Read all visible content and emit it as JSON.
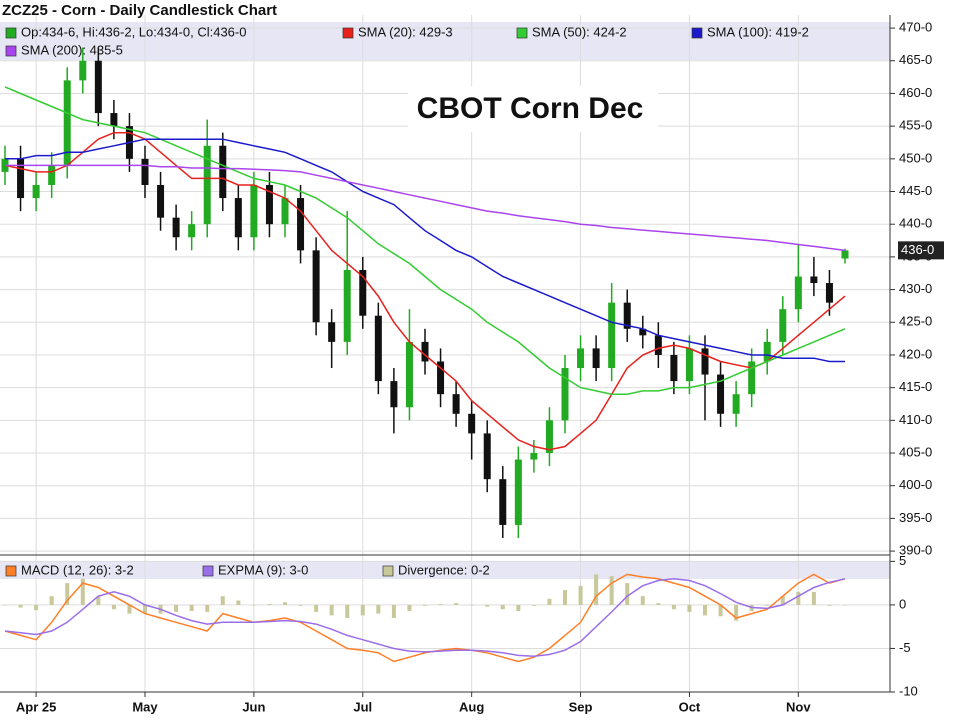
{
  "chart_data": [
    {
      "type": "candlestick",
      "title": "ZCZ25 - Corn - Daily Candlestick Chart",
      "annotation": "CBOT Corn Dec",
      "ohlc_legend": "Op:434-6, Hi:436-2, Lo:434-0, Cl:436-0",
      "up_color": "#22aa22",
      "down_color": "#111111",
      "categories": [
        null,
        null,
        "Apr 25",
        null,
        null,
        null,
        null,
        null,
        null,
        "May",
        null,
        null,
        null,
        null,
        null,
        null,
        "Jun",
        null,
        null,
        null,
        null,
        null,
        null,
        "Jul",
        null,
        null,
        null,
        null,
        null,
        null,
        "Aug",
        null,
        null,
        null,
        null,
        null,
        null,
        "Sep",
        null,
        null,
        null,
        null,
        null,
        null,
        "Oct",
        null,
        null,
        null,
        null,
        null,
        null,
        "Nov",
        null,
        null,
        null
      ],
      "open": [
        448,
        450,
        444,
        446,
        449,
        462,
        465,
        457,
        455,
        450,
        446,
        441,
        438,
        440,
        452,
        444,
        438,
        446,
        440,
        444,
        436,
        425,
        422,
        433,
        426,
        416,
        412,
        422,
        419,
        414,
        411,
        408,
        401,
        394,
        404,
        405,
        410,
        418,
        421,
        418,
        428,
        424,
        423,
        420,
        416,
        421,
        417,
        411,
        414,
        419,
        422,
        427,
        432,
        431,
        434.75
      ],
      "high": [
        452,
        452,
        448,
        451,
        464,
        467,
        467,
        459,
        457,
        452,
        448,
        443,
        442,
        456,
        454,
        446,
        448,
        448,
        446,
        446,
        438,
        427,
        442,
        435,
        428,
        418,
        427,
        424,
        421,
        416,
        413,
        410,
        403,
        406,
        407,
        412,
        420,
        423,
        423,
        431,
        430,
        426,
        425,
        422,
        423,
        423,
        419,
        416,
        421,
        424,
        429,
        437,
        435,
        433,
        436.25
      ],
      "low": [
        446,
        442,
        442,
        444,
        447,
        460,
        455,
        453,
        448,
        444,
        439,
        436,
        436,
        438,
        442,
        436,
        436,
        438,
        438,
        434,
        423,
        418,
        420,
        424,
        414,
        408,
        410,
        417,
        412,
        409,
        404,
        399,
        392,
        392,
        402,
        403,
        408,
        416,
        416,
        416,
        422,
        421,
        418,
        414,
        414,
        410,
        409,
        409,
        412,
        417,
        420,
        425,
        429,
        426,
        434
      ],
      "close": [
        450,
        444,
        446,
        449,
        462,
        465,
        457,
        455,
        450,
        446,
        441,
        438,
        440,
        452,
        444,
        438,
        446,
        440,
        444,
        436,
        425,
        422,
        433,
        426,
        416,
        412,
        422,
        419,
        414,
        411,
        408,
        401,
        394,
        404,
        405,
        410,
        418,
        421,
        418,
        428,
        424,
        423,
        420,
        416,
        421,
        417,
        411,
        414,
        419,
        422,
        427,
        432,
        431,
        428,
        436
      ],
      "series": [
        {
          "name": "SMA (20): 429-3",
          "color": "#e8201c",
          "values": [
            449,
            448.5,
            448,
            448,
            449,
            451,
            453,
            454,
            454,
            453,
            451,
            449,
            447,
            447,
            447,
            446,
            446,
            445,
            444,
            442,
            439,
            436,
            434,
            432,
            429,
            425,
            422,
            420,
            418,
            416,
            413,
            411,
            409,
            407,
            406,
            405.5,
            406,
            408,
            410,
            414,
            418,
            420,
            421,
            421.5,
            421,
            420,
            419,
            418.5,
            418,
            419,
            421,
            423,
            425,
            427,
            429
          ]
        },
        {
          "name": "SMA (50): 424-2",
          "color": "#33cc33",
          "values": [
            461,
            460,
            459,
            458,
            457,
            456,
            455.5,
            455,
            454.5,
            454,
            453,
            452,
            451,
            450,
            449,
            448,
            447,
            446.5,
            446,
            445,
            444,
            442.5,
            441,
            439,
            437,
            435.5,
            434,
            432,
            430,
            428.5,
            427,
            425,
            423.5,
            422,
            420,
            418,
            416.5,
            415,
            414.5,
            414,
            414,
            414.5,
            414.5,
            415,
            415,
            415.5,
            416,
            417,
            418,
            419,
            420,
            421,
            422,
            423,
            424
          ]
        },
        {
          "name": "SMA (100): 419-2",
          "color": "#1a1acc",
          "values": [
            450,
            450,
            450.5,
            450.5,
            451,
            451,
            451.5,
            452,
            452.5,
            453,
            453,
            453,
            453,
            453,
            453,
            452.5,
            452,
            451.5,
            451,
            450,
            449,
            448,
            446.5,
            445,
            444,
            443,
            441,
            439,
            437.5,
            436,
            435,
            433.5,
            432,
            431,
            430,
            429,
            428,
            427,
            426,
            425,
            424.5,
            424,
            423,
            422.5,
            422,
            421.5,
            421,
            420.5,
            420,
            420,
            419.5,
            419.5,
            419.5,
            419,
            419
          ]
        },
        {
          "name": "SMA (200): 435-5",
          "color": "#aa44ee",
          "values": [
            449,
            449,
            449,
            449,
            449,
            449,
            449,
            449,
            449,
            449,
            448.8,
            448.8,
            448.6,
            448.6,
            448.5,
            448.5,
            448.4,
            448.3,
            448.2,
            448,
            447.5,
            447,
            446.5,
            446,
            445.5,
            445,
            444.5,
            444,
            443.5,
            443,
            442.5,
            442,
            441.7,
            441.3,
            441,
            440.7,
            440.4,
            440,
            439.8,
            439.5,
            439.3,
            439.1,
            438.9,
            438.7,
            438.5,
            438.3,
            438.1,
            437.9,
            437.7,
            437.5,
            437.2,
            436.9,
            436.6,
            436.3,
            436
          ]
        }
      ],
      "last_price": {
        "value": 436,
        "label": "436-0"
      },
      "ylim": [
        389.4,
        472
      ],
      "yticks": [
        {
          "value": 390,
          "label": "390-0"
        },
        {
          "value": 395,
          "label": "395-0"
        },
        {
          "value": 400,
          "label": "400-0"
        },
        {
          "value": 405,
          "label": "405-0"
        },
        {
          "value": 410,
          "label": "410-0"
        },
        {
          "value": 415,
          "label": "415-0"
        },
        {
          "value": 420,
          "label": "420-0"
        },
        {
          "value": 425,
          "label": "425-0"
        },
        {
          "value": 430,
          "label": "430-0"
        },
        {
          "value": 435,
          "label": "435-0"
        },
        {
          "value": 440,
          "label": "440-0"
        },
        {
          "value": 445,
          "label": "445-0"
        },
        {
          "value": 450,
          "label": "450-0"
        },
        {
          "value": 455,
          "label": "455-0"
        },
        {
          "value": 460,
          "label": "460-0"
        },
        {
          "value": 465,
          "label": "465-0"
        },
        {
          "value": 470,
          "label": "470-0"
        }
      ],
      "grid": true
    },
    {
      "type": "line",
      "series": [
        {
          "name": "MACD (12, 26): 3-2",
          "color": "#ff7f27",
          "values": [
            -3,
            -3.5,
            -4,
            -2,
            0.5,
            2.5,
            2,
            1,
            0,
            -1,
            -1.5,
            -2,
            -2.5,
            -3,
            -1,
            -1.5,
            -2,
            -1.8,
            -1.5,
            -2,
            -3,
            -4,
            -5,
            -5.2,
            -5.5,
            -6.5,
            -6,
            -5.5,
            -5.2,
            -5,
            -5.2,
            -5.5,
            -6,
            -6.5,
            -6,
            -5,
            -3.5,
            -2,
            1,
            2.5,
            3.5,
            3.2,
            3,
            2.5,
            2,
            1,
            0,
            -1.5,
            -1,
            -0.5,
            1,
            2.5,
            3.5,
            2.5,
            3
          ]
        },
        {
          "name": "EXPMA (9): 3-0",
          "color": "#9a6ee8",
          "values": [
            -3,
            -3.2,
            -3.4,
            -3,
            -2,
            -0.5,
            1,
            1.5,
            1,
            0,
            -0.5,
            -1.2,
            -1.8,
            -2.2,
            -2,
            -2,
            -2,
            -1.9,
            -1.8,
            -1.9,
            -2.2,
            -2.8,
            -3.5,
            -4,
            -4.5,
            -5,
            -5.3,
            -5.4,
            -5.3,
            -5.2,
            -5.2,
            -5.3,
            -5.5,
            -5.8,
            -5.9,
            -5.7,
            -5.2,
            -4.2,
            -2.5,
            -0.8,
            1,
            2.2,
            2.8,
            3,
            2.8,
            2.2,
            1.3,
            0.3,
            -0.3,
            -0.4,
            0,
            1,
            2,
            2.6,
            3
          ]
        },
        {
          "name": "Divergence: 0-2",
          "color": "#c8c89a",
          "kind": "bar",
          "values": [
            0,
            -0.3,
            -0.6,
            1,
            2.5,
            3,
            1,
            -0.5,
            -1,
            -1,
            -1,
            -0.8,
            -0.7,
            -0.8,
            1,
            0.5,
            0,
            0.1,
            0.3,
            -0.1,
            -0.8,
            -1.2,
            -1.5,
            -1.2,
            -1,
            -1.5,
            -0.7,
            -0.1,
            0.1,
            0.2,
            0,
            -0.2,
            -0.5,
            -0.7,
            -0.1,
            0.7,
            1.7,
            2.2,
            3.5,
            3.3,
            2.5,
            1,
            0.2,
            -0.5,
            -0.8,
            -1.2,
            -1.3,
            -1.8,
            -0.7,
            -0.1,
            1,
            1.5,
            1.5,
            -0.1,
            0
          ]
        }
      ],
      "ylim": [
        -10,
        5.5
      ],
      "yticks": [
        -10,
        -5,
        0,
        5
      ],
      "grid": true
    }
  ]
}
